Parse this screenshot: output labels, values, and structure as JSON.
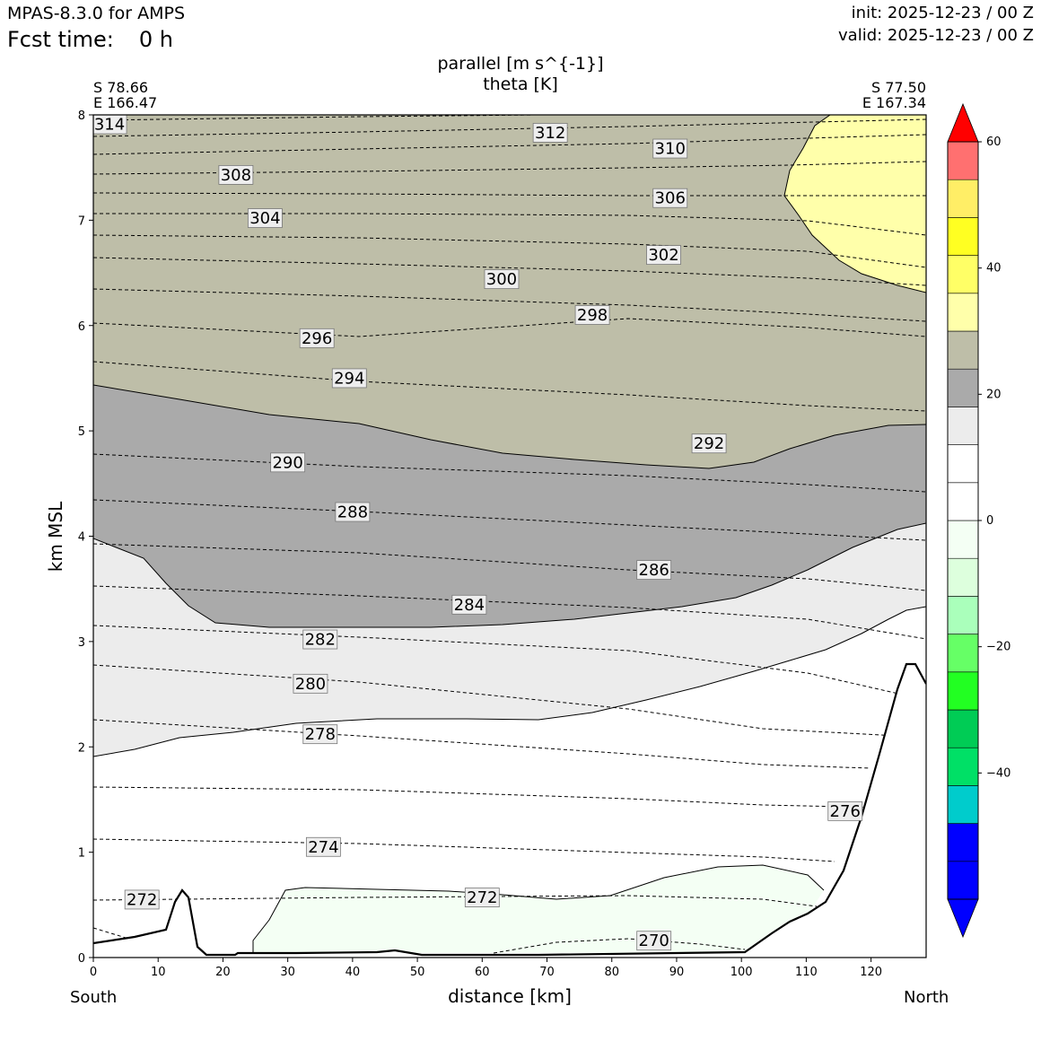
{
  "header": {
    "model": "MPAS-8.3.0 for AMPS",
    "fcst_label": "Fcst time:",
    "fcst_value": "0 h",
    "init": "init: 2025-12-23 / 00 Z",
    "valid": "valid: 2025-12-23 / 00 Z"
  },
  "chart_data": {
    "type": "contour_cross_section",
    "title_line1": "parallel [m s^{-1}]",
    "title_line2": "theta [K]",
    "xlabel": "distance [km]",
    "ylabel": "km MSL",
    "xlim": [
      0,
      128.5
    ],
    "ylim": [
      0,
      8
    ],
    "xticks": [
      0,
      10,
      20,
      30,
      40,
      50,
      60,
      70,
      80,
      90,
      100,
      110,
      120
    ],
    "yticks": [
      0,
      1,
      2,
      3,
      4,
      5,
      6,
      7,
      8
    ],
    "start_point": {
      "lat": "S 78.66",
      "lon": "E 166.47",
      "side": "South"
    },
    "end_point": {
      "lat": "S 77.50",
      "lon": "E 167.34",
      "side": "North"
    },
    "theta_labels": [
      {
        "v": "314",
        "x": 2.5,
        "y": 7.91
      },
      {
        "v": "312",
        "x": 70.5,
        "y": 7.83
      },
      {
        "v": "310",
        "x": 89,
        "y": 7.68
      },
      {
        "v": "308",
        "x": 22,
        "y": 7.43
      },
      {
        "v": "306",
        "x": 89,
        "y": 7.21
      },
      {
        "v": "304",
        "x": 26.5,
        "y": 7.02
      },
      {
        "v": "302",
        "x": 88,
        "y": 6.67
      },
      {
        "v": "300",
        "x": 63,
        "y": 6.44
      },
      {
        "v": "298",
        "x": 77,
        "y": 6.1
      },
      {
        "v": "296",
        "x": 34.5,
        "y": 5.88
      },
      {
        "v": "294",
        "x": 39.5,
        "y": 5.5
      },
      {
        "v": "292",
        "x": 95,
        "y": 4.88
      },
      {
        "v": "290",
        "x": 30,
        "y": 4.7
      },
      {
        "v": "288",
        "x": 40,
        "y": 4.23
      },
      {
        "v": "286",
        "x": 86.5,
        "y": 3.68
      },
      {
        "v": "284",
        "x": 58,
        "y": 3.35
      },
      {
        "v": "282",
        "x": 35,
        "y": 3.02
      },
      {
        "v": "280",
        "x": 33.5,
        "y": 2.6
      },
      {
        "v": "278",
        "x": 35,
        "y": 2.12
      },
      {
        "v": "276",
        "x": 116,
        "y": 1.39
      },
      {
        "v": "274",
        "x": 35.5,
        "y": 1.05
      },
      {
        "v": "272",
        "x": 7.5,
        "y": 0.55
      },
      {
        "v": "272",
        "x": 60,
        "y": 0.57
      },
      {
        "v": "270",
        "x": 86.5,
        "y": 0.16
      }
    ],
    "colorbar": {
      "ticks": [
        "60",
        "40",
        "20",
        "0",
        "−20",
        "−40"
      ],
      "tick_values": [
        60,
        40,
        20,
        0,
        -20,
        -40
      ],
      "bins": [
        -60,
        -54,
        -48,
        -42,
        -36,
        -30,
        -24,
        -18,
        -12,
        -6,
        0,
        6,
        12,
        18,
        24,
        30,
        36,
        42,
        48,
        54,
        60
      ],
      "colors": [
        "#0000ff",
        "#0000ff",
        "#0000ff",
        "#00cccc",
        "#00e066",
        "#00cc55",
        "#22ff22",
        "#66ff66",
        "#aaffbb",
        "#ddffdd",
        "#f4fff4",
        "#ffffff",
        "#ffffff",
        "#ececec",
        "#aaaaaa",
        "#bebea8",
        "#ffffaa",
        "#ffff66",
        "#ffff22",
        "#ffee66",
        "#ff7070",
        "#ff0000"
      ],
      "extend_min_color": "#0000ff",
      "extend_max_color": "#ff0000"
    },
    "fill_colors": {
      "tan": "#bebea8",
      "gray": "#aaaaaa",
      "lightgray": "#ececec",
      "yellow": "#ffffaa",
      "mint": "#f4fff4"
    }
  },
  "labels": {
    "south": "South",
    "north": "North"
  }
}
